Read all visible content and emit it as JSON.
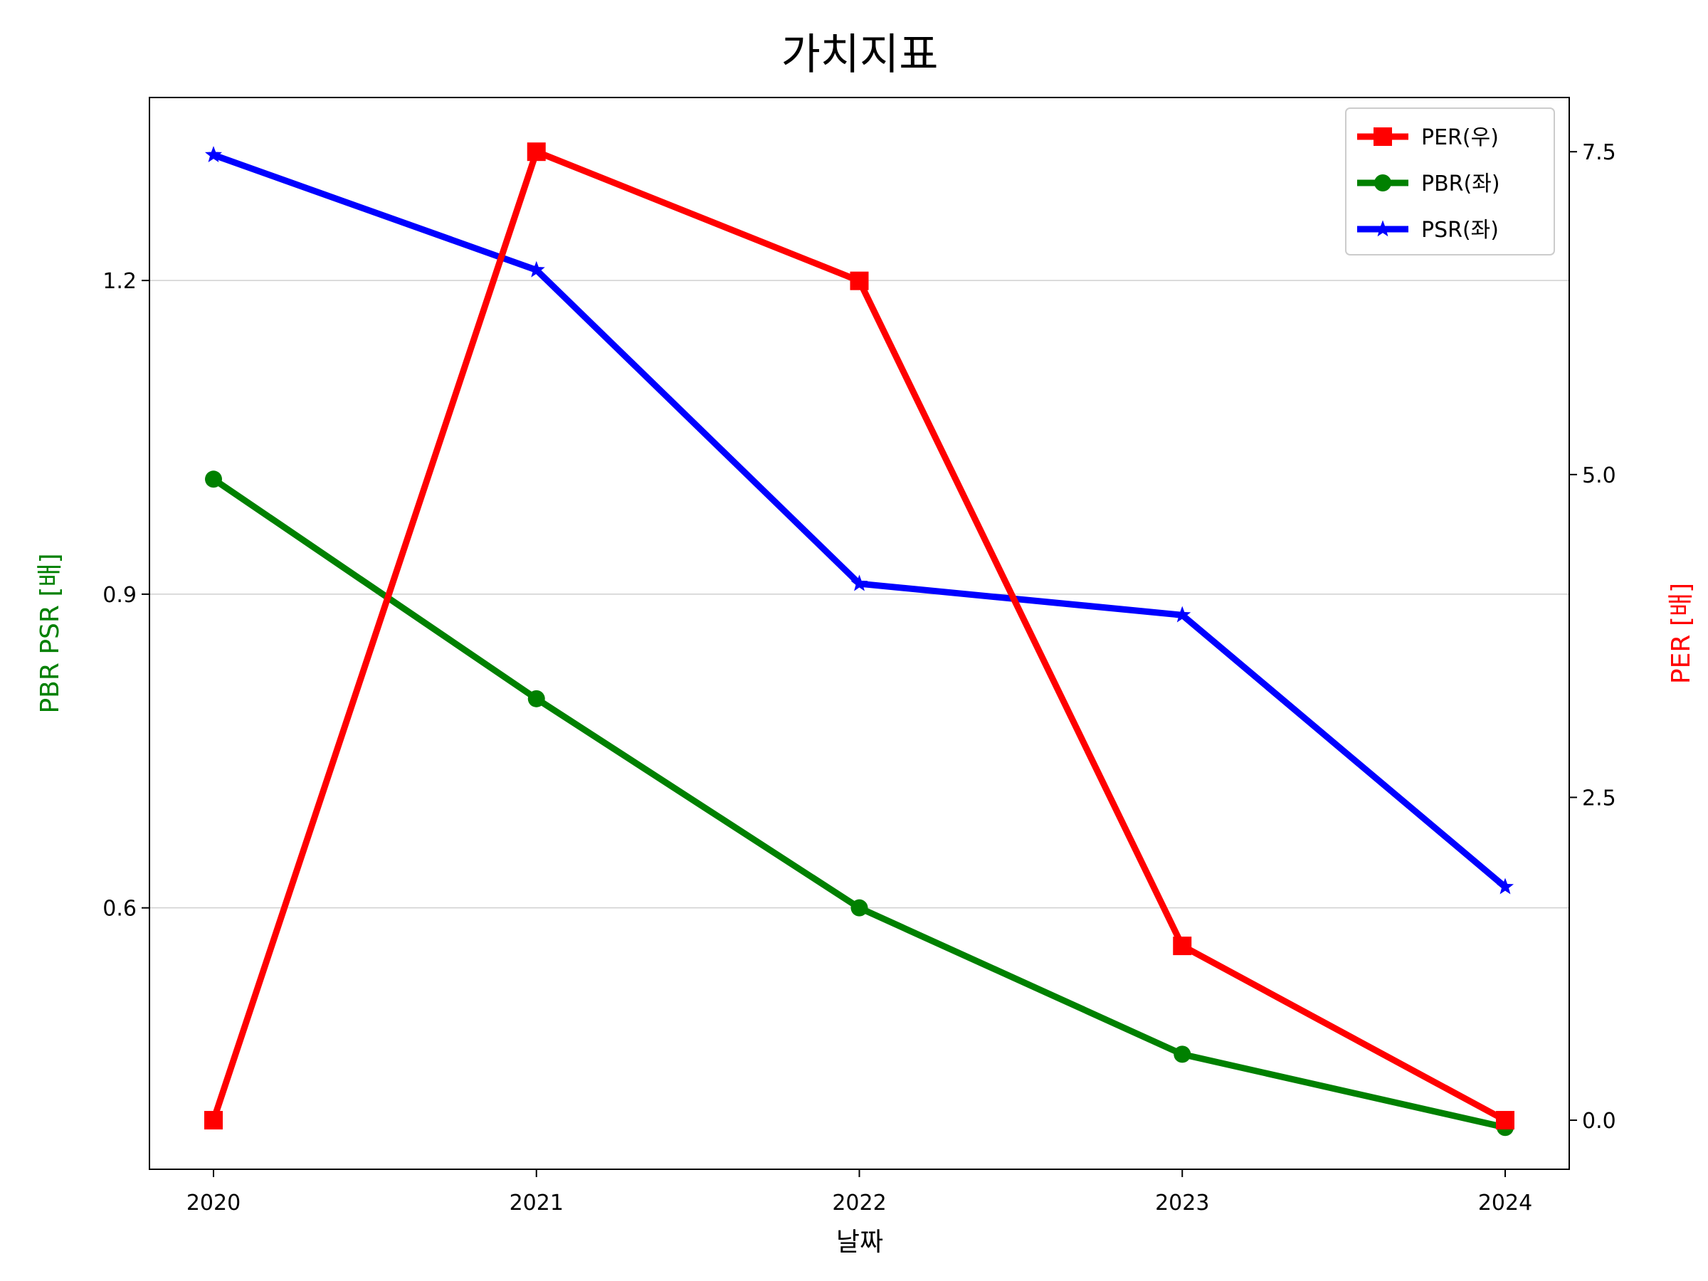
{
  "chart_data": {
    "type": "line",
    "title": "가치지표",
    "xlabel": "날짜",
    "ylabel_left": "PBR PSR [배]",
    "ylabel_right": "PER [배]",
    "categories": [
      "2020",
      "2021",
      "2022",
      "2023",
      "2024"
    ],
    "ylim_left": [
      0.35,
      1.375
    ],
    "yticks_left": [
      "0.6",
      "0.9",
      "1.2"
    ],
    "ylim_right": [
      -0.38,
      7.92
    ],
    "yticks_right": [
      "0.0",
      "2.5",
      "5.0",
      "7.5"
    ],
    "grid": "horizontal (left axis)",
    "legend_position": "top-right",
    "series": [
      {
        "name": "PER(우)",
        "axis": "right",
        "color": "#ff0000",
        "marker": "square",
        "values": [
          0.0,
          7.5,
          6.5,
          1.35,
          0.0
        ]
      },
      {
        "name": "PBR(좌)",
        "axis": "left",
        "color": "#008000",
        "marker": "circle",
        "values": [
          1.01,
          0.8,
          0.6,
          0.46,
          0.39
        ]
      },
      {
        "name": "PSR(좌)",
        "axis": "left",
        "color": "#0000ff",
        "marker": "star",
        "values": [
          1.32,
          1.21,
          0.91,
          0.88,
          0.62
        ]
      }
    ]
  },
  "colors": {
    "left_axis_label": "#008000",
    "right_axis_label": "#ff0000"
  }
}
